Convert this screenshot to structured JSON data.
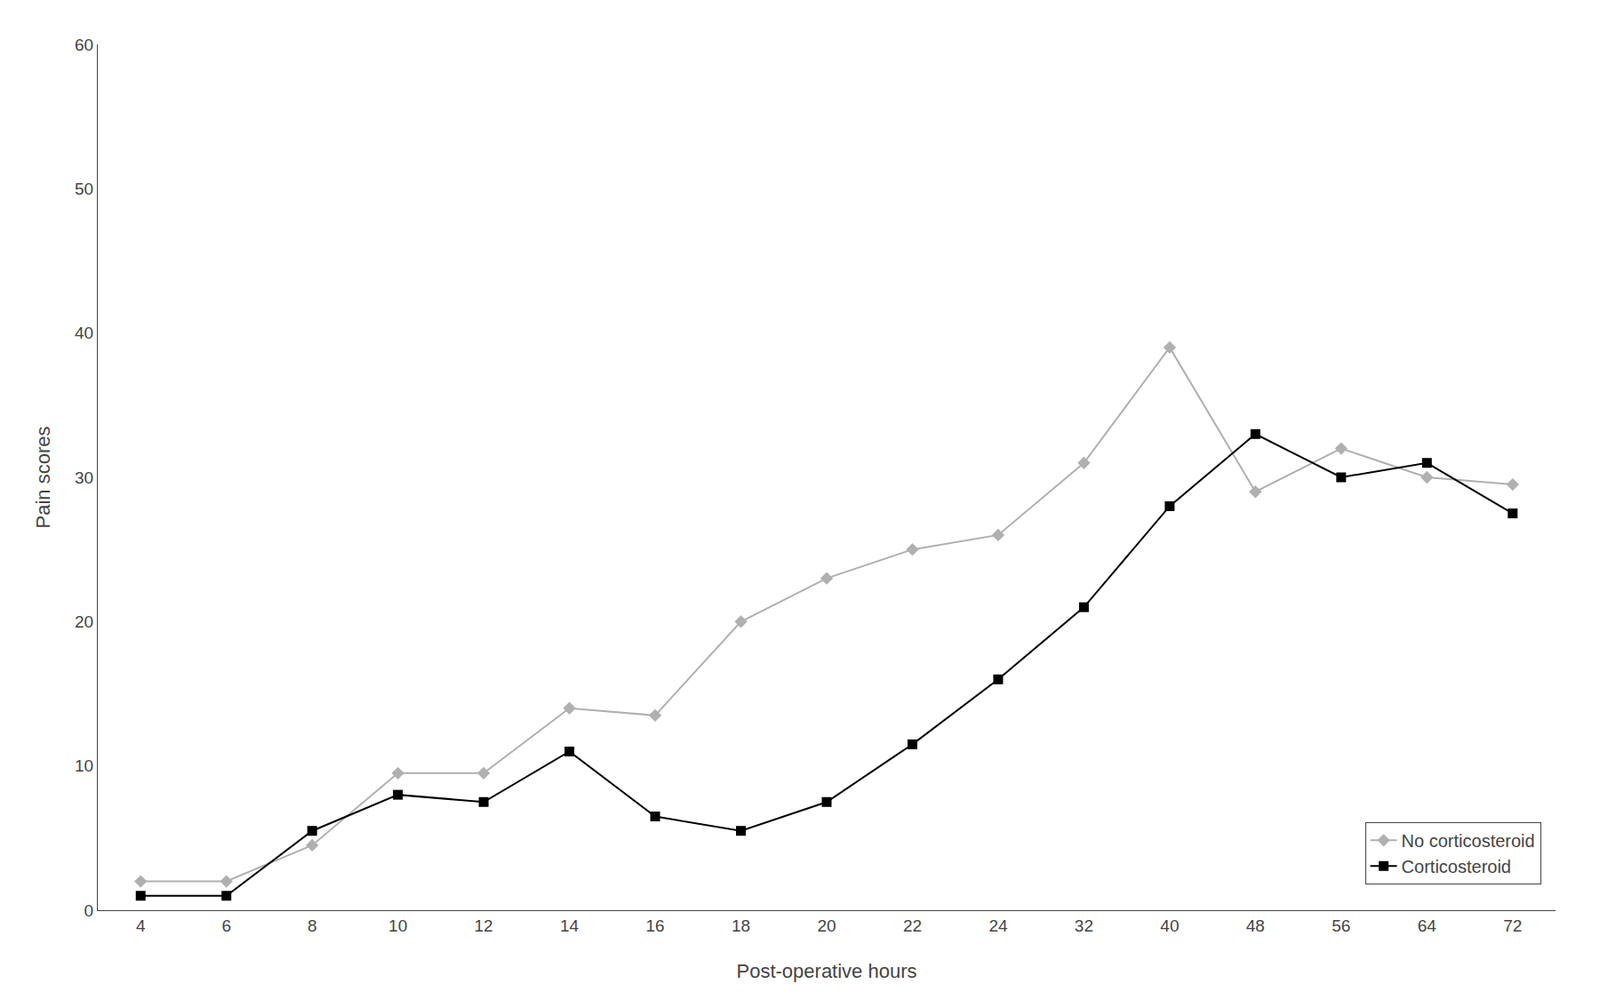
{
  "chart_data": {
    "type": "line",
    "xlabel": "Post-operative hours",
    "ylabel": "Pain scores",
    "categories": [
      "4",
      "6",
      "8",
      "10",
      "12",
      "14",
      "16",
      "18",
      "20",
      "22",
      "24",
      "32",
      "40",
      "48",
      "56",
      "64",
      "72"
    ],
    "series": [
      {
        "name": "No corticosteroid",
        "color": "#b0b0b0",
        "marker": "diamond",
        "values": [
          2,
          2,
          4.5,
          9.5,
          9.5,
          14,
          13.5,
          20,
          23,
          25,
          26,
          31,
          39,
          29,
          32,
          30,
          29.5
        ]
      },
      {
        "name": "Corticosteroid",
        "color": "#000000",
        "marker": "square",
        "values": [
          1,
          1,
          5.5,
          8,
          7.5,
          11,
          6.5,
          5.5,
          7.5,
          11.5,
          16,
          21,
          28,
          33,
          30,
          31,
          27.5
        ]
      }
    ],
    "ylim": [
      0,
      60
    ],
    "yticks": [
      0,
      10,
      20,
      30,
      40,
      50,
      60
    ],
    "grid": false,
    "legend": "lower right"
  }
}
